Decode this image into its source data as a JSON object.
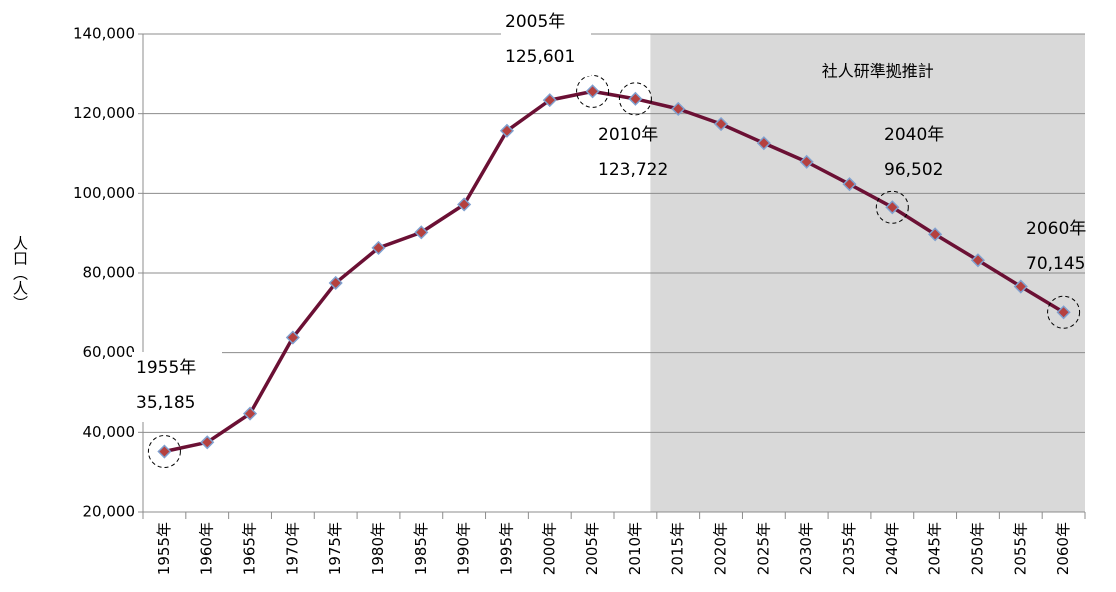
{
  "chart_data": {
    "type": "line",
    "y_axis_label": "人口（人）",
    "categories": [
      "1955年",
      "1960年",
      "1965年",
      "1970年",
      "1975年",
      "1980年",
      "1985年",
      "1990年",
      "1995年",
      "2000年",
      "2005年",
      "2010年",
      "2015年",
      "2020年",
      "2025年",
      "2030年",
      "2035年",
      "2040年",
      "2045年",
      "2050年",
      "2055年",
      "2060年"
    ],
    "values": [
      35185,
      37500,
      44700,
      63800,
      77500,
      86300,
      90200,
      97200,
      115700,
      123400,
      125601,
      123722,
      121200,
      117400,
      112600,
      107900,
      102300,
      96502,
      89700,
      83200,
      76600,
      70145
    ],
    "value_labels": [
      "35,185",
      null,
      null,
      null,
      null,
      null,
      null,
      null,
      null,
      null,
      "125,601",
      "123,722",
      null,
      null,
      null,
      null,
      null,
      "96,502",
      null,
      null,
      null,
      "70,145"
    ],
    "color": "#6b1034",
    "marker_color": "#b5413f",
    "ylim": [
      20000,
      140000
    ],
    "yticks": [
      {
        "value": 20000,
        "label": "20,000"
      },
      {
        "value": 40000,
        "label": "40,000"
      },
      {
        "value": 60000,
        "label": "60,000"
      },
      {
        "value": 80000,
        "label": "80,000"
      },
      {
        "value": 100000,
        "label": "100,000"
      },
      {
        "value": 120000,
        "label": "120,000"
      },
      {
        "value": 140000,
        "label": "140,000"
      }
    ],
    "grid": true,
    "shaded_region_label": "社人研準拠推計"
  }
}
